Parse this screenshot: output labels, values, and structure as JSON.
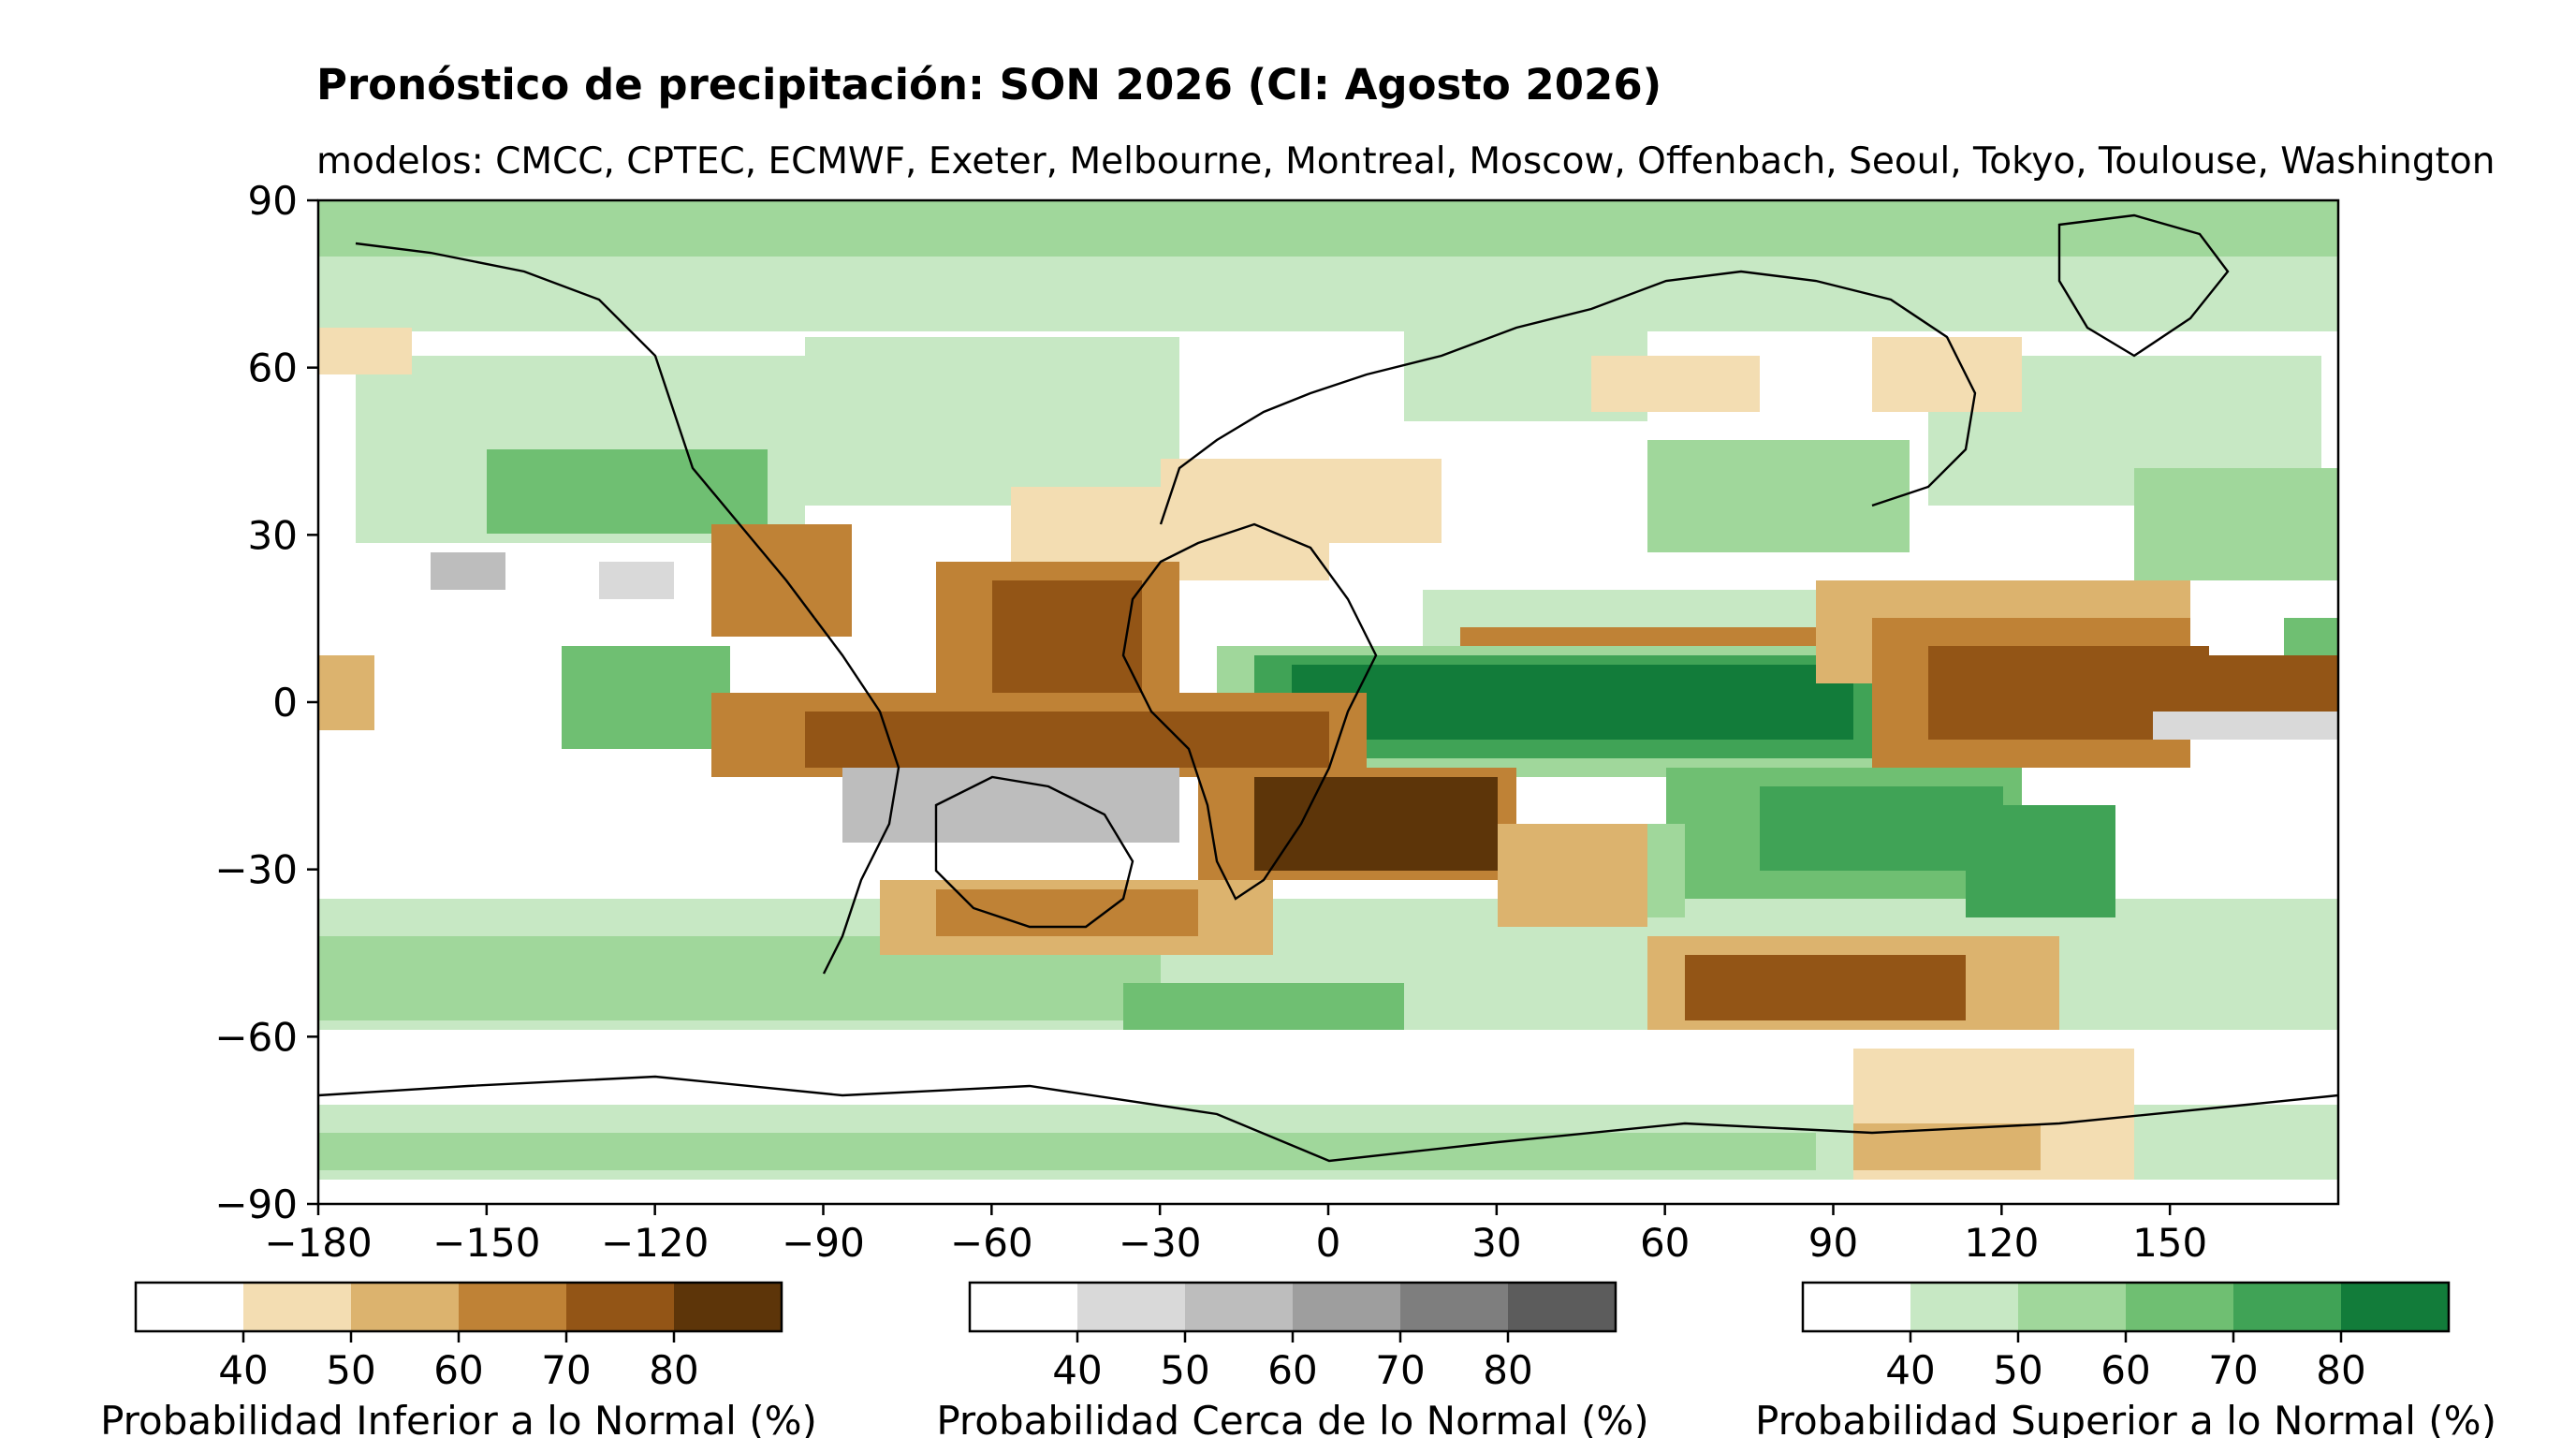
{
  "title": "Pronóstico de precipitación: SON 2026 (CI: Agosto 2026)",
  "subtitle": "modelos: CMCC, CPTEC, ECMWF, Exeter, Melbourne, Montreal, Moscow, Offenbach, Seoul, Tokyo, Toulouse, Washington",
  "map": {
    "projection": "equirectangular",
    "lon_range": [
      -180,
      180
    ],
    "lat_range": [
      -90,
      90
    ],
    "lon_ticks": [
      "−180",
      "−150",
      "−120",
      "−90",
      "−60",
      "−30",
      "0",
      "30",
      "60",
      "90",
      "120",
      "150"
    ],
    "lon_tick_values": [
      -180,
      -150,
      -120,
      -90,
      -60,
      -30,
      0,
      30,
      60,
      90,
      120,
      150
    ],
    "lat_ticks": [
      "90",
      "60",
      "30",
      "0",
      "−30",
      "−60",
      "−90"
    ],
    "lat_tick_values": [
      90,
      60,
      30,
      0,
      -30,
      -60,
      -90
    ]
  },
  "colorbars": [
    {
      "id": "below",
      "label": "Probabilidad Inferior a lo Normal (%)",
      "ticks": [
        "40",
        "50",
        "60",
        "70",
        "80"
      ],
      "colors": [
        "#ffffff",
        "#f3ddb2",
        "#dcb36e",
        "#bf8236",
        "#935516",
        "#5d3509"
      ]
    },
    {
      "id": "near",
      "label": "Probabilidad Cerca de lo Normal (%)",
      "ticks": [
        "40",
        "50",
        "60",
        "70",
        "80"
      ],
      "colors": [
        "#ffffff",
        "#d9d9d9",
        "#bdbdbd",
        "#9e9e9e",
        "#7e7e7e",
        "#5c5c5c"
      ]
    },
    {
      "id": "above",
      "label": "Probabilidad Superior a lo Normal (%)",
      "ticks": [
        "40",
        "50",
        "60",
        "70",
        "80"
      ],
      "colors": [
        "#ffffff",
        "#c7e8c4",
        "#a0d79b",
        "#6fbf72",
        "#40a356",
        "#127c3a"
      ]
    }
  ]
}
